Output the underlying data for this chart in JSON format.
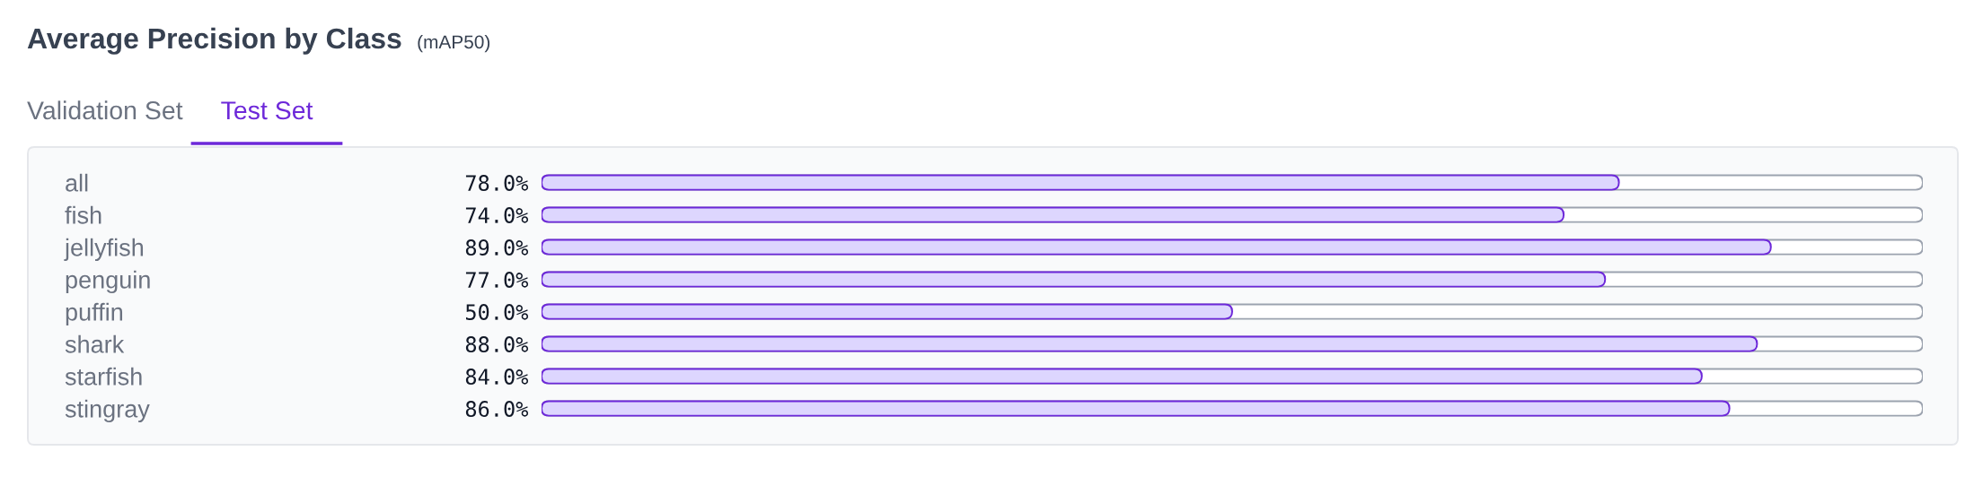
{
  "chart_data": {
    "type": "bar",
    "orientation": "horizontal",
    "title": "Average Precision by Class",
    "subtitle": "(mAP50)",
    "annotations": [
      "Validation Set",
      "Test Set"
    ],
    "categories": [
      "all",
      "fish",
      "jellyfish",
      "penguin",
      "puffin",
      "shark",
      "starfish",
      "stingray"
    ],
    "values": [
      78,
      74,
      89,
      77,
      50,
      88,
      84,
      86
    ],
    "value_labels": [
      "78.0%",
      "74.0%",
      "89.0%",
      "77.0%",
      "50.0%",
      "88.0%",
      "84.0%",
      "86.0%"
    ],
    "color": "#ddd6fe",
    "xlim": [
      0,
      100
    ],
    "tick_labels": "y"
  }
}
